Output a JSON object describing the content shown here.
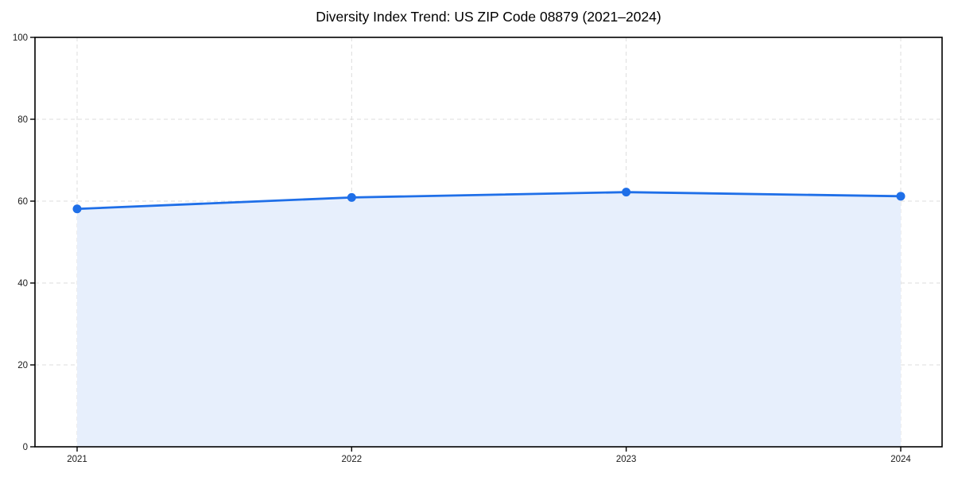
{
  "chart_data": {
    "type": "area",
    "title": "Diversity Index Trend: US ZIP Code 08879 (2021–2024)",
    "categories": [
      "2021",
      "2022",
      "2023",
      "2024"
    ],
    "series": [
      {
        "name": "Diversity Index",
        "values": [
          58.1,
          60.9,
          62.2,
          61.2
        ]
      }
    ],
    "xlabel": "",
    "ylabel": "",
    "ylim": [
      0,
      100
    ],
    "yticks": [
      0,
      20,
      40,
      60,
      80,
      100
    ],
    "grid": true,
    "grid_style": "dashed",
    "legend_position": "none",
    "marker": "circle",
    "colors": {
      "line": "#1f6fe8",
      "marker": "#1f6fe8",
      "fill": "#e7effc",
      "grid": "#dcdcdc",
      "spine": "#000000",
      "tick_label": "#1a1a1a",
      "title": "#000000"
    }
  }
}
